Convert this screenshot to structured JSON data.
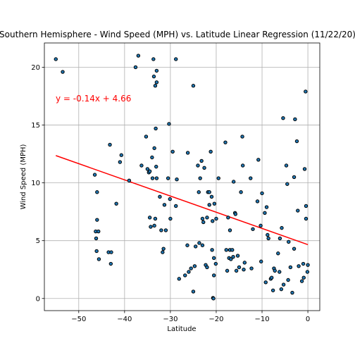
{
  "chart_data": {
    "type": "scatter",
    "title": "Southern Hemisphere - Wind Speed (MPH) vs. Latitude Linear Regression (11/22/20)",
    "xlabel": "Latitude",
    "ylabel": "Wind Speed (MPH)",
    "xlim": [
      -57.5,
      2.6
    ],
    "ylim": [
      -1.05,
      22.1
    ],
    "xticks": [
      -50,
      -40,
      -30,
      -20,
      -10,
      0
    ],
    "yticks": [
      0,
      5,
      10,
      15,
      20
    ],
    "grid": true,
    "regression": {
      "equation_label": "y = -0.14x + 4.66",
      "slope": -0.14,
      "intercept": 4.66,
      "x_range": [
        -55,
        0
      ],
      "color": "#ff0000"
    },
    "marker_fill": "#1f77b4",
    "marker_edge": "#000000",
    "points": [
      [
        -55,
        20.7
      ],
      [
        -53.5,
        19.6
      ],
      [
        -46.5,
        10.7
      ],
      [
        -46,
        9.2
      ],
      [
        -46,
        6.8
      ],
      [
        -46.3,
        5.8
      ],
      [
        -45.7,
        5.8
      ],
      [
        -46.2,
        5.2
      ],
      [
        -46.1,
        4.1
      ],
      [
        -45.6,
        3.4
      ],
      [
        -43.5,
        4.0
      ],
      [
        -42.9,
        4.0
      ],
      [
        -43.2,
        13.3
      ],
      [
        -43,
        3.0
      ],
      [
        -41.8,
        8.2
      ],
      [
        -41,
        11.8
      ],
      [
        -40.7,
        12.4
      ],
      [
        -39,
        10.2
      ],
      [
        -37.6,
        20.0
      ],
      [
        -37,
        21.0
      ],
      [
        -36.3,
        11.5
      ],
      [
        -35.3,
        14.0
      ],
      [
        -35,
        11.2
      ],
      [
        -34.7,
        10.9
      ],
      [
        -34.5,
        11.0
      ],
      [
        -34.5,
        7.0
      ],
      [
        -34.3,
        6.2
      ],
      [
        -34,
        12.2
      ],
      [
        -33.9,
        10.4
      ],
      [
        -33.7,
        20.7
      ],
      [
        -33.6,
        19.2
      ],
      [
        -33.5,
        13.0
      ],
      [
        -33.3,
        18.4
      ],
      [
        -33.2,
        14.7
      ],
      [
        -33,
        18.7
      ],
      [
        -33,
        19.7
      ],
      [
        -33.1,
        11.4
      ],
      [
        -33,
        10.4
      ],
      [
        -33.5,
        6.3
      ],
      [
        -33.3,
        6.9
      ],
      [
        -32.3,
        8.8
      ],
      [
        -32,
        5.9
      ],
      [
        -31.7,
        4.0
      ],
      [
        -31.5,
        4.3
      ],
      [
        -31.3,
        8.1
      ],
      [
        -31,
        5.9
      ],
      [
        -30.5,
        10.4
      ],
      [
        -30.3,
        15.1
      ],
      [
        -30.1,
        8.6
      ],
      [
        -30,
        6.9
      ],
      [
        -29.5,
        12.7
      ],
      [
        -28.8,
        20.7
      ],
      [
        -28.8,
        8.0
      ],
      [
        -28.6,
        10.3
      ],
      [
        -28.1,
        1.7
      ],
      [
        -26.8,
        2.0
      ],
      [
        -26.3,
        4.6
      ],
      [
        -26.2,
        12.6
      ],
      [
        -26,
        2.3
      ],
      [
        -25.5,
        2.6
      ],
      [
        -25,
        18.4
      ],
      [
        -25,
        0.6
      ],
      [
        -24.7,
        2.8
      ],
      [
        -24.5,
        4.5
      ],
      [
        -24,
        11.5
      ],
      [
        -23.8,
        9.2
      ],
      [
        -23.7,
        4.8
      ],
      [
        -23.5,
        10.4
      ],
      [
        -23.2,
        11.9
      ],
      [
        -23,
        4.6
      ],
      [
        -23,
        6.9
      ],
      [
        -22.8,
        6.6
      ],
      [
        -22.6,
        11.3
      ],
      [
        -22.3,
        2.9
      ],
      [
        -22,
        2.7
      ],
      [
        -22,
        7.0
      ],
      [
        -21.8,
        9.2
      ],
      [
        -21.5,
        9.2
      ],
      [
        -21.5,
        8.1
      ],
      [
        -21.2,
        12.7
      ],
      [
        -21,
        8.8
      ],
      [
        -20.9,
        4.2
      ],
      [
        -20.8,
        6.7
      ],
      [
        -20.7,
        0.05
      ],
      [
        -20.6,
        0.0
      ],
      [
        -20.5,
        3.5
      ],
      [
        -20.5,
        2.0
      ],
      [
        -20.4,
        8.2
      ],
      [
        -20.1,
        3.0
      ],
      [
        -20,
        6.9
      ],
      [
        -19.5,
        10.4
      ],
      [
        -18,
        13.5
      ],
      [
        -17.8,
        4.2
      ],
      [
        -17.6,
        2.4
      ],
      [
        -17.4,
        7.0
      ],
      [
        -17.2,
        3.5
      ],
      [
        -17,
        5.9
      ],
      [
        -17,
        4.2
      ],
      [
        -16.8,
        3.4
      ],
      [
        -16.5,
        4.2
      ],
      [
        -16.3,
        3.6
      ],
      [
        -16.2,
        10.1
      ],
      [
        -15.9,
        7.4
      ],
      [
        -15.8,
        7.3
      ],
      [
        -15.6,
        2.4
      ],
      [
        -15.3,
        3.7
      ],
      [
        -15,
        2.7
      ],
      [
        -14.6,
        9.2
      ],
      [
        -14.3,
        14.0
      ],
      [
        -14.2,
        11.5
      ],
      [
        -14,
        2.5
      ],
      [
        -13.8,
        3.1
      ],
      [
        -12.5,
        10.4
      ],
      [
        -12.3,
        2.6
      ],
      [
        -12,
        6.0
      ],
      [
        -11,
        8.4
      ],
      [
        -10.8,
        12.0
      ],
      [
        -10.3,
        6.3
      ],
      [
        -10.2,
        3.2
      ],
      [
        -10,
        9.1
      ],
      [
        -9.4,
        7.4
      ],
      [
        -9.2,
        1.4
      ],
      [
        -9,
        7.9
      ],
      [
        -8.8,
        5.5
      ],
      [
        -8.6,
        5.2
      ],
      [
        -8.1,
        1.7
      ],
      [
        -7.9,
        1.8
      ],
      [
        -7.6,
        0.7
      ],
      [
        -7.4,
        2.6
      ],
      [
        -7.2,
        2.4
      ],
      [
        -6.5,
        3.9
      ],
      [
        -6.2,
        2.3
      ],
      [
        -6.1,
        5.2
      ],
      [
        -5.8,
        0.8
      ],
      [
        -5.7,
        6.1
      ],
      [
        -5.4,
        15.6
      ],
      [
        -5.3,
        1.2
      ],
      [
        -4.7,
        11.5
      ],
      [
        -4.5,
        9.9
      ],
      [
        -4.3,
        1.6
      ],
      [
        -4.2,
        4.9
      ],
      [
        -3.8,
        2.7
      ],
      [
        -3.4,
        0.5
      ],
      [
        -3,
        4.3
      ],
      [
        -3,
        10.5
      ],
      [
        -2.8,
        15.5
      ],
      [
        -2.4,
        13.6
      ],
      [
        -2.2,
        7.6
      ],
      [
        -2,
        2.8
      ],
      [
        -1.3,
        1.5
      ],
      [
        -1,
        3.0
      ],
      [
        -0.9,
        1.8
      ],
      [
        -0.7,
        11.2
      ],
      [
        -0.5,
        17.9
      ],
      [
        -0.4,
        8.0
      ],
      [
        -0.4,
        6.9
      ],
      [
        -0.1,
        2.3
      ],
      [
        0,
        2.9
      ]
    ]
  }
}
